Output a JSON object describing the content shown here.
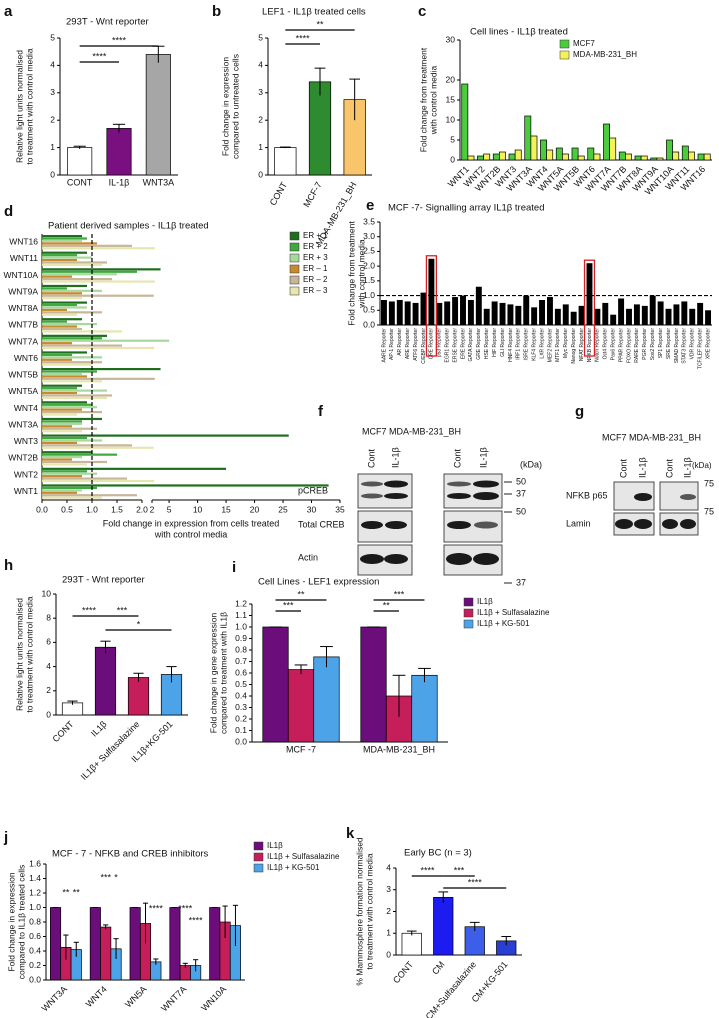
{
  "chart_data": [
    {
      "type": "bar",
      "panel": "a",
      "title": "293T - Wnt reporter",
      "ylabel": [
        "Relative light units normalised",
        "to treatment with control media"
      ],
      "categories": [
        "CONT",
        "IL-1β",
        "WNT3A"
      ],
      "series": [
        {
          "colors": [
            "#ffffff",
            "#7a1080",
            "#a6a6a6"
          ],
          "values": [
            1.0,
            1.7,
            4.4
          ],
          "errors": [
            0.05,
            0.15,
            0.3
          ]
        }
      ],
      "ylim": [
        0,
        5
      ],
      "yticks": [
        0,
        1,
        2,
        3,
        4,
        5
      ],
      "significance": [
        "****",
        "****"
      ]
    },
    {
      "type": "bar",
      "panel": "b",
      "title": "LEF1 - IL1β treated cells",
      "ylabel": [
        "Fold change in expression",
        "compared to untreated cells"
      ],
      "categories": [
        "CONT",
        "MCF-7",
        "MDA-MB-231_BH"
      ],
      "series": [
        {
          "colors": [
            "#ffffff",
            "#2f8b2f",
            "#f9c56b"
          ],
          "values": [
            1.0,
            3.4,
            2.75
          ],
          "errors": [
            0.02,
            0.5,
            0.75
          ]
        }
      ],
      "ylim": [
        0,
        5
      ],
      "yticks": [
        0,
        1,
        2,
        3,
        4,
        5
      ],
      "significance": [
        "**",
        "****"
      ]
    },
    {
      "type": "bar",
      "panel": "c",
      "title": "Cell lines - IL1β treated",
      "ylabel": [
        "Fold change from treatment",
        "with control media"
      ],
      "categories": [
        "WNT1",
        "WNT2",
        "WNT2B",
        "WNT3",
        "WNT3A",
        "WNT4",
        "WNT5A",
        "WNT5B",
        "WNT6",
        "WNT7A",
        "WNT7B",
        "WNT8A",
        "WNT9A",
        "WNT10A",
        "WNT11",
        "WNT16"
      ],
      "series": [
        {
          "name": "MCF7",
          "color": "#4ccc3c",
          "values": [
            19,
            1,
            1.5,
            1.5,
            11,
            5,
            3,
            3,
            3,
            9,
            2,
            1,
            0.5,
            5,
            3.5,
            1.5
          ]
        },
        {
          "name": "MDA-MB-231_BH",
          "color": "#f4f25a",
          "values": [
            1,
            1.5,
            2,
            2.5,
            6,
            2.5,
            1.5,
            1,
            1.5,
            5.5,
            1.5,
            1,
            0.5,
            2,
            2,
            1.5
          ]
        }
      ],
      "ylim": [
        0,
        30
      ],
      "yticks": [
        0,
        5,
        10,
        15,
        20,
        30
      ]
    },
    {
      "type": "barh",
      "panel": "d",
      "title": "Patient derived samples - IL1β treated",
      "xlabel": [
        "Fold change in expression from cells treated",
        "with control media"
      ],
      "categories": [
        "WNT1",
        "WNT2",
        "WNT2B",
        "WNT3",
        "WNT3A",
        "WNT4",
        "WNT5A",
        "WNT5B",
        "WNT6",
        "WNT7A",
        "WNT7B",
        "WNT8A",
        "WNT9A",
        "WNT10A",
        "WNT11",
        "WNT16"
      ],
      "series": [
        {
          "name": "ER + 1",
          "color": "#1e6e1e",
          "values": [
            33,
            15,
            1.0,
            26,
            1.2,
            0.9,
            0.8,
            3.5,
            0.9,
            1.3,
            0.8,
            0.9,
            0.9,
            3.5,
            0.9,
            0.8
          ]
        },
        {
          "name": "ER + 2",
          "color": "#3fa83f",
          "values": [
            1.1,
            0.9,
            1.5,
            0.9,
            0.8,
            1.0,
            0.7,
            1.1,
            0.6,
            1.2,
            0.5,
            0.7,
            0.5,
            1.9,
            0.7,
            0.9
          ]
        },
        {
          "name": "ER + 3",
          "color": "#a6d99b",
          "values": [
            0.8,
            1.1,
            0.8,
            1.2,
            0.8,
            1.1,
            1.3,
            0.8,
            1.2,
            5.0,
            1.1,
            0.9,
            1.2,
            1.5,
            1.0,
            0.8
          ]
        },
        {
          "name": "ER – 1",
          "color": "#c9892f",
          "values": [
            0.7,
            0.8,
            0.6,
            0.7,
            0.6,
            0.8,
            0.7,
            0.9,
            0.6,
            0.6,
            0.7,
            0.5,
            0.8,
            0.6,
            0.7,
            1.1
          ]
        },
        {
          "name": "ER – 2",
          "color": "#c8b69a",
          "values": [
            1.9,
            1.7,
            1.3,
            1.8,
            1.1,
            1.2,
            1.4,
            2.5,
            1.2,
            1.6,
            0.8,
            1.2,
            2.3,
            1.4,
            1.3,
            1.8
          ]
        },
        {
          "name": "ER – 3",
          "color": "#e6e6b0",
          "values": [
            1.2,
            2.4,
            0.9,
            2.3,
            0.8,
            0.7,
            1.3,
            1.2,
            1.0,
            2.4,
            1.6,
            0.7,
            0.8,
            2.5,
            1.2,
            2.5
          ]
        }
      ],
      "xlim": [
        0,
        35
      ],
      "xbreak": 2,
      "refline": 1,
      "xticks": [
        {
          "value": 0,
          "label": "0.0"
        },
        0.5,
        {
          "value": 1,
          "label": "1.0"
        },
        1.5,
        {
          "value": 2,
          "label": "2.0"
        },
        2,
        5,
        10,
        15,
        20,
        25,
        30,
        35
      ]
    },
    {
      "type": "bar",
      "panel": "e",
      "title": "MCF -7- Signalling array IL1β treated",
      "ylabel": [
        "Fold change from treatment",
        "with control media"
      ],
      "categories": [
        "AARE Reporter",
        "AP-1 Reporter",
        "AR Reporter",
        "ARE Reporter",
        "ATF6 Reporter",
        "C/EBP Reporter",
        "CRE Reporter",
        "p53 Reporter",
        "EGR1 Reporter",
        "ERSE Reporter",
        "ERE Reporter",
        "GATA Reporter",
        "GRE Reporter",
        "HSE Reporter",
        "HIF Reporter",
        "GLI Reporter",
        "HNF4 Reporter",
        "IRF1 Reporter",
        "ISRE Reporter",
        "KLF4 Reporter",
        "LXR Reporter",
        "MEF2 Reporter",
        "MTF1 Reporter",
        "Myc Reporter",
        "Nanog Reporter",
        "NFAT Reporter",
        "NFKB Reporter",
        "Notch Reporter",
        "Oct4 Reporter",
        "Pax6 Reporter",
        "PPAR Reporter",
        "FOXO Reporter",
        "RARE Reporter",
        "PGR Reporter",
        "Sox2 Reporter",
        "SP1 Reporter",
        "SRE Reporter",
        "SMAD Reporter",
        "STAT3 Reporter",
        "VDR Reporter",
        "TCF/LEF Reporter",
        "XRE Reporter"
      ],
      "series": [
        {
          "color": "#000000",
          "values": [
            0.85,
            0.8,
            0.85,
            0.8,
            0.75,
            1.1,
            2.25,
            0.75,
            0.8,
            0.95,
            1.0,
            0.85,
            1.3,
            0.55,
            0.8,
            0.75,
            0.7,
            0.65,
            1.0,
            0.6,
            0.85,
            0.95,
            0.55,
            0.7,
            0.45,
            0.65,
            2.1,
            0.55,
            0.75,
            0.35,
            0.9,
            0.55,
            0.7,
            0.65,
            1.0,
            0.8,
            0.55,
            0.7,
            0.8,
            0.55,
            0.75,
            0.5
          ]
        }
      ],
      "ylim": [
        0,
        3.5
      ],
      "refline": 1,
      "highlight": [
        6,
        26
      ],
      "highlight_color": "#d62027",
      "yticks": [
        {
          "value": 0,
          "label": "0.0"
        },
        0.5,
        {
          "value": 1,
          "label": "1.0"
        },
        1.5,
        {
          "value": 2,
          "label": "2.0"
        },
        2.5,
        {
          "value": 3,
          "label": "3.0"
        },
        3.5
      ]
    },
    {
      "type": "bar",
      "panel": "h",
      "title": "293T - Wnt reporter",
      "ylabel": [
        "Relative light units normalised",
        "to treatment with control media"
      ],
      "categories": [
        "CONT",
        "IL1β",
        "IL1β+ Sulfasalazine",
        "IL1β+KG-501"
      ],
      "series": [
        {
          "colors": [
            "#ffffff",
            "#6b0d7a",
            "#c61e5b",
            "#4da3e8"
          ],
          "values": [
            1.0,
            5.6,
            3.1,
            3.35
          ],
          "errors": [
            0.15,
            0.5,
            0.35,
            0.65
          ]
        }
      ],
      "ylim": [
        0,
        10
      ],
      "yticks": [
        0,
        2,
        4,
        6,
        8,
        10
      ],
      "significance": [
        "****",
        "***",
        "*"
      ]
    },
    {
      "type": "bar",
      "panel": "i",
      "title": "Cell Lines - LEF1 expression",
      "ylabel": [
        "Fold change in gene expression",
        "compared to treatment with IL1β"
      ],
      "categories": [
        "MCF -7",
        "MDA-MB-231_BH"
      ],
      "series": [
        {
          "name": "IL1β",
          "color": "#6b0d7a",
          "values": [
            1.0,
            1.0
          ],
          "errors": [
            0,
            0
          ]
        },
        {
          "name": "IL1β + Sulfasalazine",
          "color": "#c61e5b",
          "values": [
            0.63,
            0.4
          ],
          "errors": [
            0.04,
            0.18
          ]
        },
        {
          "name": "IL1β + KG-501",
          "color": "#4da3e8",
          "values": [
            0.74,
            0.58
          ],
          "errors": [
            0.09,
            0.06
          ]
        }
      ],
      "ylim": [
        0,
        1.2
      ],
      "yticks": [
        {
          "value": 0,
          "label": "0.0"
        },
        0.1,
        0.2,
        0.3,
        0.4,
        0.5,
        0.6,
        0.7,
        0.8,
        0.9,
        {
          "value": 1,
          "label": "1.0"
        },
        1.1,
        1.2
      ],
      "significance": [
        "**",
        "***",
        "***",
        "**"
      ]
    },
    {
      "type": "bar",
      "panel": "j",
      "title": "MCF - 7 - NFKB and CREB inhibitors",
      "ylabel": [
        "Fold change in expression",
        "compared to IL1β treated cells"
      ],
      "categories": [
        "WNT3A",
        "WNT4",
        "WN5A",
        "WNT7A",
        "WN10A"
      ],
      "series": [
        {
          "name": "IL1β",
          "color": "#6b0d7a",
          "values": [
            1,
            1,
            1,
            1,
            1
          ],
          "errors": [
            0,
            0,
            0,
            0,
            0
          ]
        },
        {
          "name": "IL1β + Sulfasalazine",
          "color": "#c61e5b",
          "values": [
            0.45,
            0.73,
            0.78,
            0.2,
            0.8
          ],
          "errors": [
            0.17,
            0.03,
            0.28,
            0.03,
            0.22
          ]
        },
        {
          "name": "IL1β + KG-501",
          "color": "#4da3e8",
          "values": [
            0.42,
            0.43,
            0.25,
            0.2,
            0.75
          ],
          "errors": [
            0.1,
            0.14,
            0.04,
            0.08,
            0.28
          ]
        }
      ],
      "ylim": [
        0,
        1.6
      ],
      "yticks": [
        {
          "value": 0,
          "label": "0.0"
        },
        0.2,
        0.4,
        0.6,
        0.8,
        {
          "value": 1,
          "label": "1.0"
        },
        1.2,
        1.4,
        1.6
      ],
      "significance": [
        "**",
        "**",
        "***",
        "*",
        "****",
        "****",
        "****"
      ]
    },
    {
      "type": "bar",
      "panel": "k",
      "title": "Early BC (n = 3)",
      "ylabel": [
        "% Mammosphere formation normalised",
        "to treatment with control media"
      ],
      "categories": [
        "CONT",
        "CM",
        "CM+Sulfasalazine",
        "CM+KG-501"
      ],
      "series": [
        {
          "colors": [
            "#ffffff",
            "#1c1cf0",
            "#3c5ee8",
            "#2a3ed4"
          ],
          "values": [
            1.0,
            2.65,
            1.3,
            0.65
          ],
          "errors": [
            0.1,
            0.25,
            0.2,
            0.2
          ]
        }
      ],
      "ylim": [
        0,
        4
      ],
      "yticks": [
        0,
        1,
        2,
        3,
        4
      ],
      "significance": [
        "****",
        "***",
        "****"
      ]
    }
  ],
  "blots": [
    {
      "panel": "f",
      "header": "MCF7 MDA-MB-231_BH",
      "lanes": [
        "Cont",
        "IL-1β",
        "Cont",
        "IL-1β"
      ],
      "unit": "(kDa)",
      "rows": [
        "pCREB",
        "Total CREB",
        "Actin"
      ],
      "markers": [
        50,
        37,
        50,
        37
      ]
    },
    {
      "panel": "g",
      "header": "MCF7 MDA-MB-231_BH",
      "lanes": [
        "Cont",
        "IL-1β",
        "Cont",
        "IL-1β"
      ],
      "unit": "(kDa)",
      "rows": [
        "NFKB p65",
        "Lamin"
      ],
      "markers": [
        75,
        75
      ]
    }
  ]
}
